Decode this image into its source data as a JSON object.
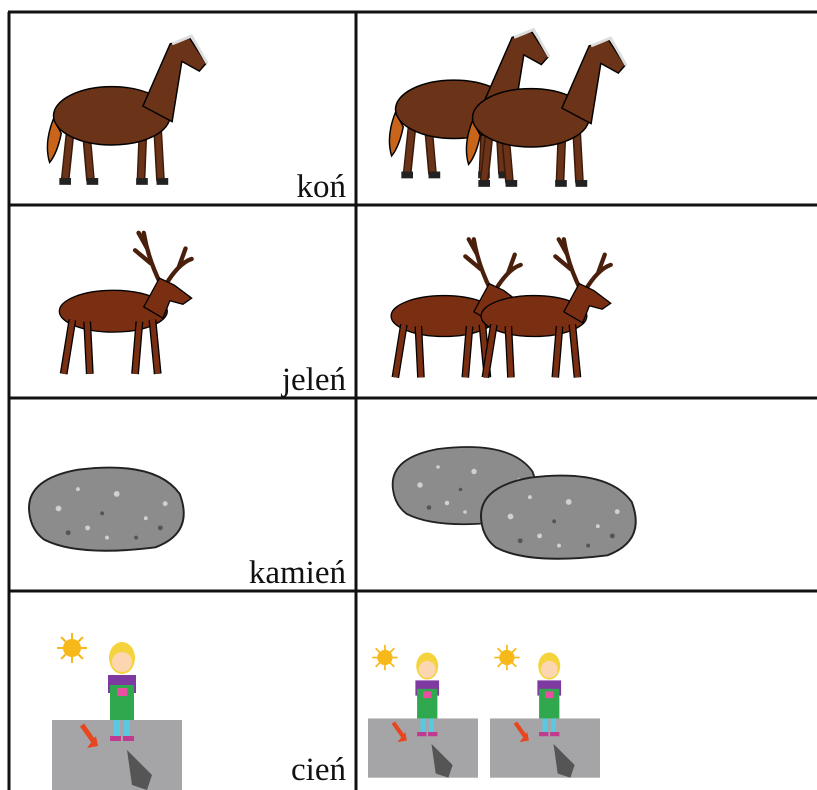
{
  "table": {
    "rows": [
      {
        "label": "koń"
      },
      {
        "label": "jeleń"
      },
      {
        "label": "kamień"
      },
      {
        "label": "cień"
      }
    ]
  }
}
